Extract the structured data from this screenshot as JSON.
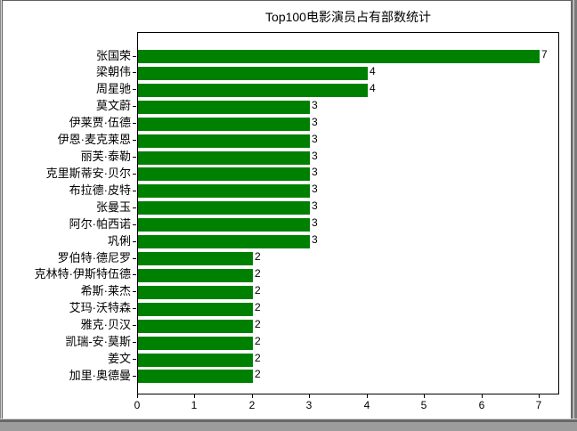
{
  "chart_data": {
    "type": "bar",
    "orientation": "horizontal",
    "title": "Top100电影演员占有部数统计",
    "categories": [
      "张国荣",
      "梁朝伟",
      "周星驰",
      "莫文蔚",
      "伊莱贾·伍德",
      "伊恩·麦克莱恩",
      "丽芙·泰勒",
      "克里斯蒂安·贝尔",
      "布拉德·皮特",
      "张曼玉",
      "阿尔·帕西诺",
      "巩俐",
      "罗伯特·德尼罗",
      "克林特·伊斯特伍德",
      "希斯·莱杰",
      "艾玛·沃特森",
      "雅克·贝汉",
      "凯瑞-安·莫斯",
      "姜文",
      "加里·奥德曼"
    ],
    "values": [
      7,
      4,
      4,
      3,
      3,
      3,
      3,
      3,
      3,
      3,
      3,
      3,
      2,
      2,
      2,
      2,
      2,
      2,
      2,
      2
    ],
    "value_labels_shown": true,
    "bar_color": "#008000",
    "x_ticks": [
      "0",
      "1",
      "2",
      "3",
      "4",
      "5",
      "6",
      "7"
    ],
    "xlim": [
      0,
      7.36
    ],
    "xlabel": "",
    "ylabel": "",
    "grid": false,
    "legend": "none",
    "category_order": "top-to-bottom"
  }
}
